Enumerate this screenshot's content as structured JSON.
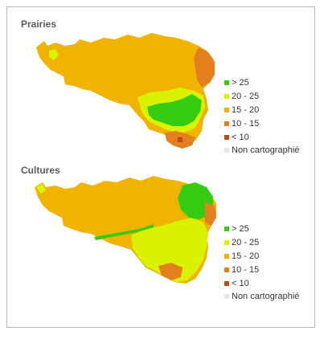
{
  "colors": {
    "gt25": "#33cc11",
    "20to25": "#d9f200",
    "15to20": "#f0b400",
    "10to15": "#e47f1e",
    "lt10": "#c04a1a",
    "none": "#e6e6e6",
    "background": "#ffffff",
    "border": "#b8b8b8",
    "title": "#5a5a5a"
  },
  "maps": [
    {
      "id": "prairies",
      "title": "Prairies",
      "legend": [
        {
          "label": "> 25",
          "class": "gt25"
        },
        {
          "label": "20 - 25",
          "class": "20to25"
        },
        {
          "label": "15 - 20",
          "class": "15to20"
        },
        {
          "label": "10 - 15",
          "class": "10to15"
        },
        {
          "label": "< 10",
          "class": "lt10"
        },
        {
          "label": "Non cartographié",
          "class": "none"
        }
      ]
    },
    {
      "id": "cultures",
      "title": "Cultures",
      "legend": [
        {
          "label": "> 25",
          "class": "gt25"
        },
        {
          "label": "20 - 25",
          "class": "20to25"
        },
        {
          "label": "15 - 20",
          "class": "15to20"
        },
        {
          "label": "10 - 15",
          "class": "10to15"
        },
        {
          "label": "< 10",
          "class": "lt10"
        },
        {
          "label": "Non cartographié",
          "class": "none"
        }
      ]
    }
  ]
}
